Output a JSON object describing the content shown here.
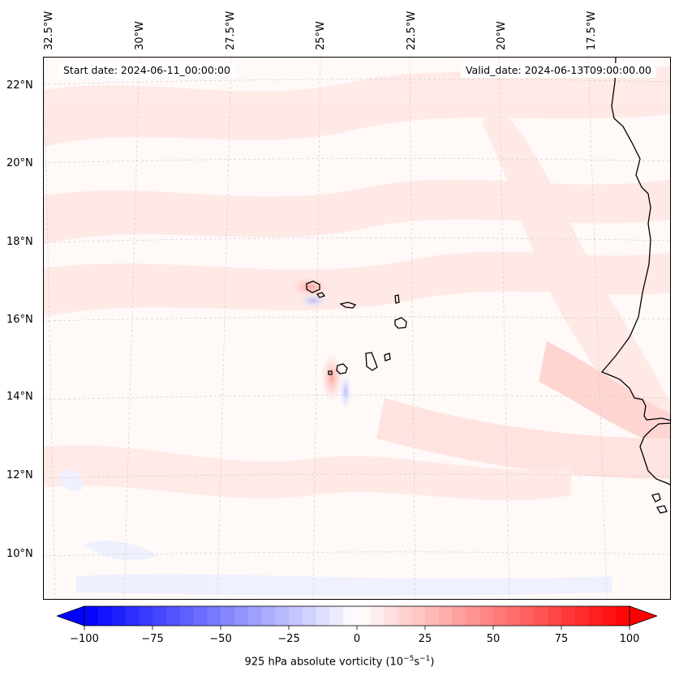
{
  "map": {
    "start_label": "Start date: 2024-06-11_00:00:00",
    "valid_label": "Valid_date: 2024-06-13T09:00:00.00",
    "lon_labels": [
      "32.5°W",
      "30°W",
      "27.5°W",
      "25°W",
      "22.5°W",
      "20°W",
      "17.5°W"
    ],
    "lat_labels": [
      "22°N",
      "20°N",
      "18°N",
      "16°N",
      "14°N",
      "12°N",
      "10°N"
    ],
    "field": "925 hPa absolute vorticity",
    "units_prefix": "(10",
    "units_exp1": "−5",
    "units_mid": "s",
    "units_exp2": "−1",
    "units_suffix": ")",
    "gridlines": "dashed",
    "features": [
      "coastline",
      "Cape Verde islands"
    ]
  },
  "colorbar": {
    "min": -100,
    "max": 100,
    "step": 5,
    "extend": "both",
    "cmap": "bwr",
    "low_color": "#0000ff",
    "mid_color": "#ffffff",
    "high_color": "#ff0000",
    "tick_labels": [
      "−100",
      "−75",
      "−50",
      "−25",
      "0",
      "25",
      "50",
      "75",
      "100"
    ]
  }
}
